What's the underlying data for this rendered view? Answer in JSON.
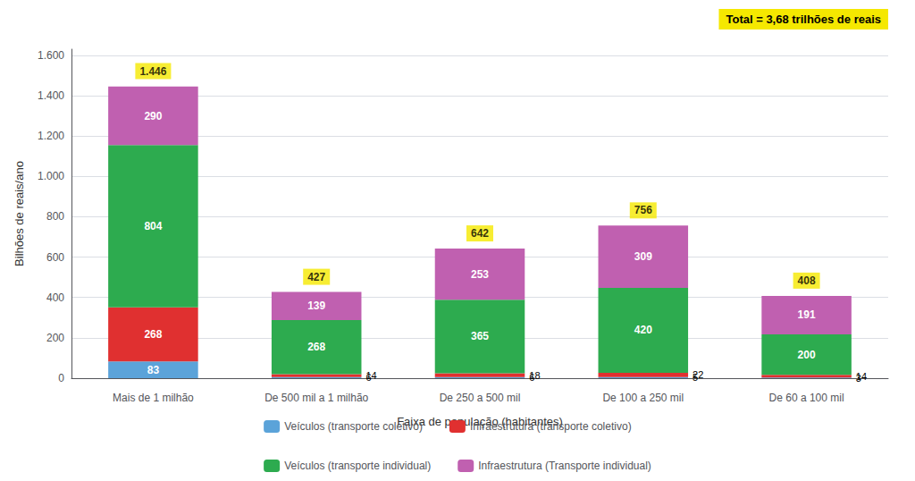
{
  "chart_data": {
    "type": "bar",
    "stacked": true,
    "categories": [
      "Mais de 1 milhão",
      "De 500 mil a 1 milhão",
      "De 250 a 500 mil",
      "De 100 a 250 mil",
      "De 60 a 100 mil"
    ],
    "series": [
      {
        "name": "Veículos (transporte coletivo)",
        "color": "#5ba3d9",
        "values": [
          83,
          6,
          6,
          5,
          3
        ]
      },
      {
        "name": "Infraestrutura (transporte coletivo)",
        "color": "#e03030",
        "values": [
          268,
          14,
          18,
          22,
          14
        ]
      },
      {
        "name": "Veículos (transporte individual)",
        "color": "#2dab4f",
        "values": [
          804,
          268,
          365,
          420,
          200
        ]
      },
      {
        "name": "Infraestrutura (Transporte individual)",
        "color": "#c060b0",
        "values": [
          290,
          139,
          253,
          309,
          191
        ]
      }
    ],
    "xlabel": "Faixa de população (habitantes)",
    "ylabel": "Bilhões de reais/ano",
    "ylim": [
      0,
      1630
    ],
    "yticks": [
      0,
      200,
      400,
      600,
      800,
      {
        "value": 1000,
        "label": "1.000"
      },
      {
        "value": 1200,
        "label": "1.200"
      },
      {
        "value": 1400,
        "label": "1.400"
      },
      {
        "value": 1600,
        "label": "1.600"
      }
    ],
    "grid": true,
    "legend": "bottom",
    "data_labels": true,
    "totals": {
      "values": [
        1446,
        427,
        642,
        756,
        408
      ],
      "value_labels": [
        "1.446",
        "427",
        "642",
        "756",
        "408"
      ],
      "color": "#f5e800"
    },
    "annotation": {
      "text": "Total = 3,68 trilhões de reais",
      "color": "#f5e800"
    }
  }
}
